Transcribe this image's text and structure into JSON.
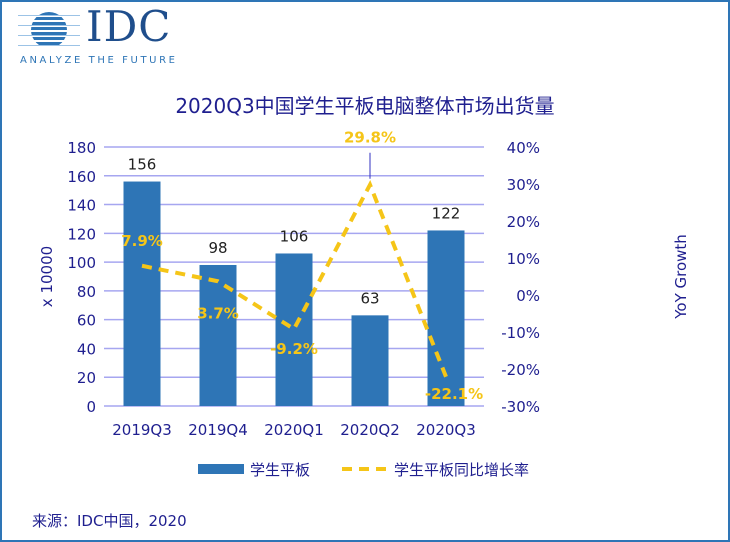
{
  "logo": {
    "text": "IDC",
    "tagline": "ANALYZE THE FUTURE"
  },
  "source": "来源：IDC中国，2020",
  "chart_data": {
    "type": "bar+line",
    "title": "2020Q3中国学生平板电脑整体市场出货量",
    "categories": [
      "2019Q3",
      "2019Q4",
      "2020Q1",
      "2020Q2",
      "2020Q3"
    ],
    "series": [
      {
        "name": "学生平板",
        "type": "bar",
        "axis": "left",
        "values": [
          156,
          98,
          106,
          63,
          122
        ],
        "labels": [
          "156",
          "98",
          "106",
          "63",
          "122"
        ],
        "color": "#2e75b6"
      },
      {
        "name": "学生平板同比增长率",
        "type": "line",
        "style": "dashed",
        "axis": "right",
        "values": [
          7.9,
          3.7,
          -9.2,
          29.8,
          -22.1
        ],
        "labels": [
          "7.9%",
          "3.7%",
          "-9.2%",
          "29.8%",
          "-22.1%"
        ],
        "color": "#f5c518"
      }
    ],
    "ylabel": "x 10000",
    "ylim": [
      0,
      180
    ],
    "yticks": [
      "0",
      "20",
      "40",
      "60",
      "80",
      "100",
      "120",
      "140",
      "160",
      "180"
    ],
    "y2label": "YoY Growth",
    "y2lim": [
      -30,
      40
    ],
    "y2ticks": [
      "-30%",
      "-20%",
      "-10%",
      "0%",
      "10%",
      "20%",
      "30%",
      "40%"
    ],
    "grid": true,
    "legend": "bottom"
  }
}
